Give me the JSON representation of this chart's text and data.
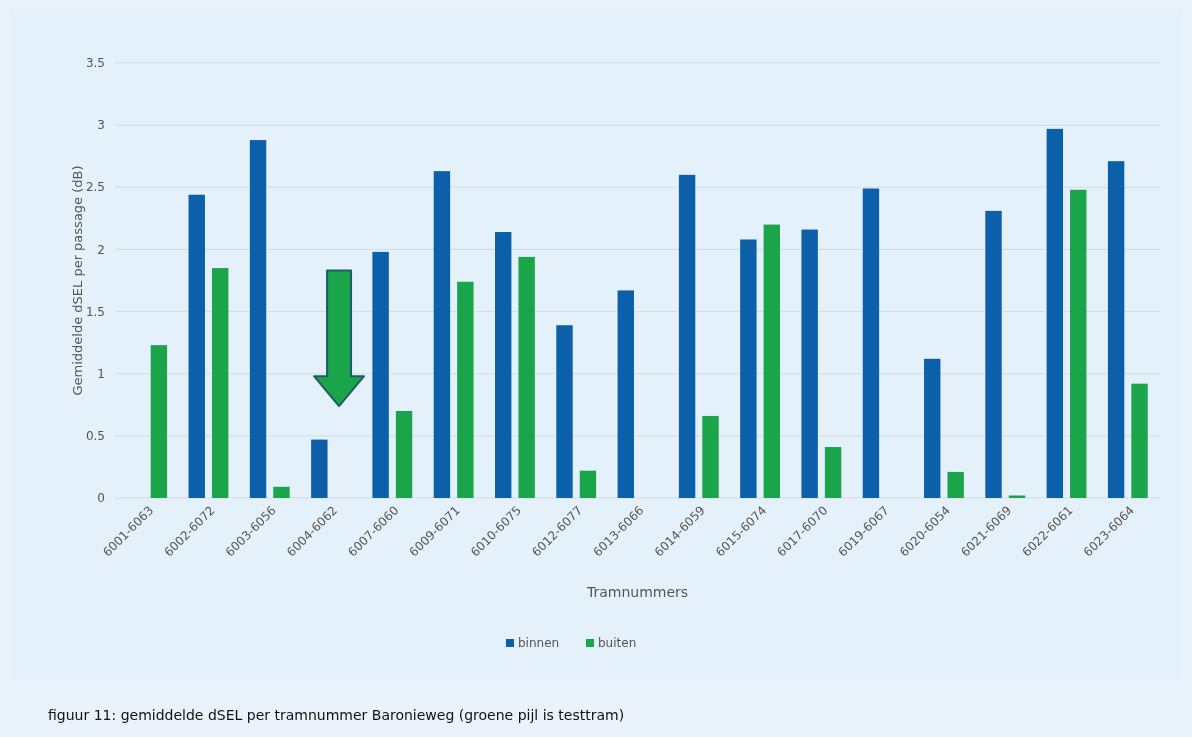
{
  "chart_data": {
    "type": "bar",
    "categories": [
      "6001-6063",
      "6002-6072",
      "6003-6056",
      "6004-6062",
      "6007-6060",
      "6009-6071",
      "6010-6075",
      "6012-6077",
      "6013-6066",
      "6014-6059",
      "6015-6074",
      "6017-6070",
      "6019-6067",
      "6020-6054",
      "6021-6069",
      "6022-6061",
      "6023-6064"
    ],
    "series": [
      {
        "name": "binnen",
        "color": "#0c60aa",
        "values": [
          null,
          2.44,
          2.88,
          0.47,
          1.98,
          2.63,
          2.14,
          1.39,
          1.67,
          2.6,
          2.08,
          2.16,
          2.49,
          1.12,
          2.31,
          2.97,
          2.71
        ]
      },
      {
        "name": "buiten",
        "color": "#1ba54b",
        "values": [
          1.23,
          1.85,
          0.09,
          null,
          0.7,
          1.74,
          1.94,
          0.22,
          null,
          0.66,
          2.2,
          0.41,
          null,
          0.21,
          0.02,
          2.48,
          0.92
        ]
      }
    ],
    "xlabel": "Tramnummers",
    "ylabel": "Gemiddelde dSEL per passage (dB)",
    "ylim": [
      0,
      3.5
    ],
    "yticks": [
      0,
      0.5,
      1,
      1.5,
      2,
      2.5,
      3,
      3.5
    ],
    "grid": "y",
    "legend": "bottom",
    "annotations": [
      "figuur 11: gemiddelde dSEL per tramnummer Baronieweg (groene pijl is testtram)"
    ]
  }
}
